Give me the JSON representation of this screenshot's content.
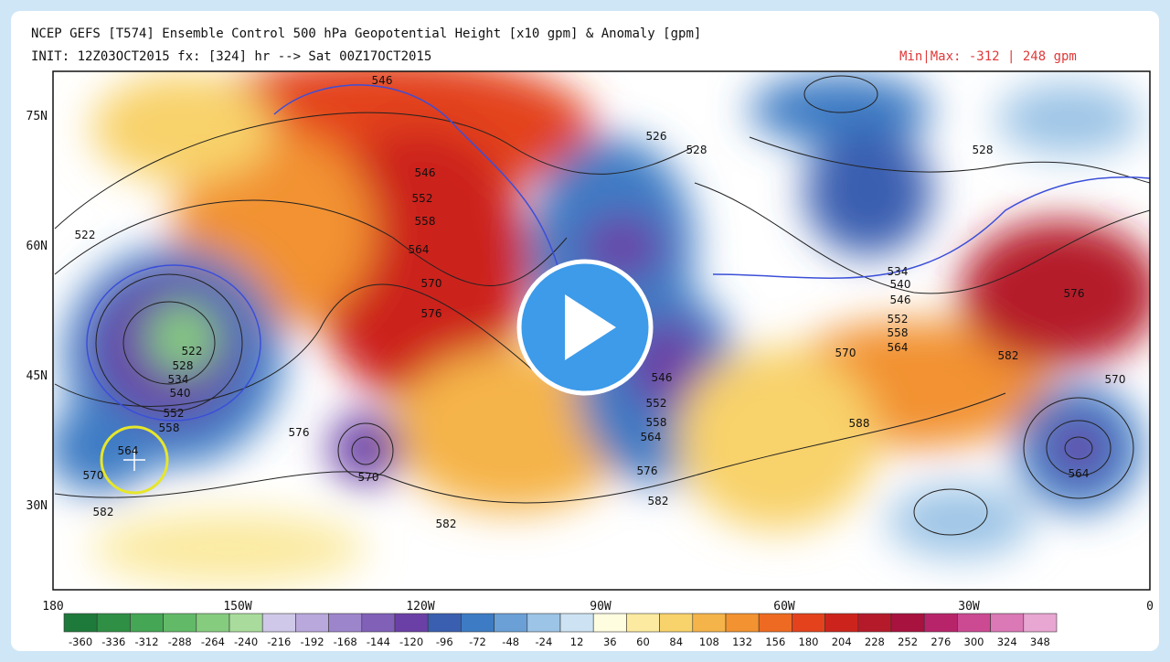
{
  "header": {
    "title": "NCEP GEFS [T574] Ensemble Control 500 hPa Geopotential Height [x10 gpm] & Anomaly [gpm]",
    "init": "INIT: 12Z03OCT2015 fx: [324] hr --> Sat 00Z17OCT2015",
    "minmax": "Min|Max: -312 |  248 gpm"
  },
  "map": {
    "lat_labels": [
      "75N",
      "60N",
      "45N",
      "30N"
    ],
    "lon_labels": [
      "180",
      "150W",
      "120W",
      "90W",
      "60W",
      "30W",
      "0"
    ],
    "contour_labels": [
      "546",
      "526",
      "528",
      "528",
      "546",
      "552",
      "558",
      "564",
      "570",
      "576",
      "522",
      "522",
      "528",
      "534",
      "540",
      "552",
      "558",
      "564",
      "570",
      "582",
      "576",
      "570",
      "582",
      "546",
      "552",
      "558",
      "564",
      "576",
      "582",
      "534",
      "540",
      "546",
      "552",
      "558",
      "564",
      "570",
      "582",
      "588",
      "576",
      "570",
      "564"
    ]
  },
  "colorbar": {
    "labels": [
      "-360",
      "-336",
      "-312",
      "-288",
      "-264",
      "-240",
      "-216",
      "-192",
      "-168",
      "-144",
      "-120",
      "-96",
      "-72",
      "-48",
      "-24",
      "12",
      "36",
      "60",
      "84",
      "108",
      "132",
      "156",
      "180",
      "204",
      "228",
      "252",
      "276",
      "300",
      "324",
      "348"
    ],
    "colors": [
      "#1e7a3a",
      "#2f8f45",
      "#45a655",
      "#62ba68",
      "#86cc7f",
      "#a9dc9c",
      "#cfc8e8",
      "#b8a8dc",
      "#9d85cc",
      "#8160b8",
      "#6a40a6",
      "#3a5fb0",
      "#3d7cc4",
      "#6aa0d6",
      "#9cc4e6",
      "#cde3f3",
      "#fffde0",
      "#fbeaa0",
      "#f8d26a",
      "#f5b44a",
      "#f29230",
      "#ee6a22",
      "#e3421c",
      "#cc241c",
      "#b51a2a",
      "#a8123e",
      "#b8246a",
      "#cc4a92",
      "#db78b6",
      "#e8a6d2"
    ]
  }
}
